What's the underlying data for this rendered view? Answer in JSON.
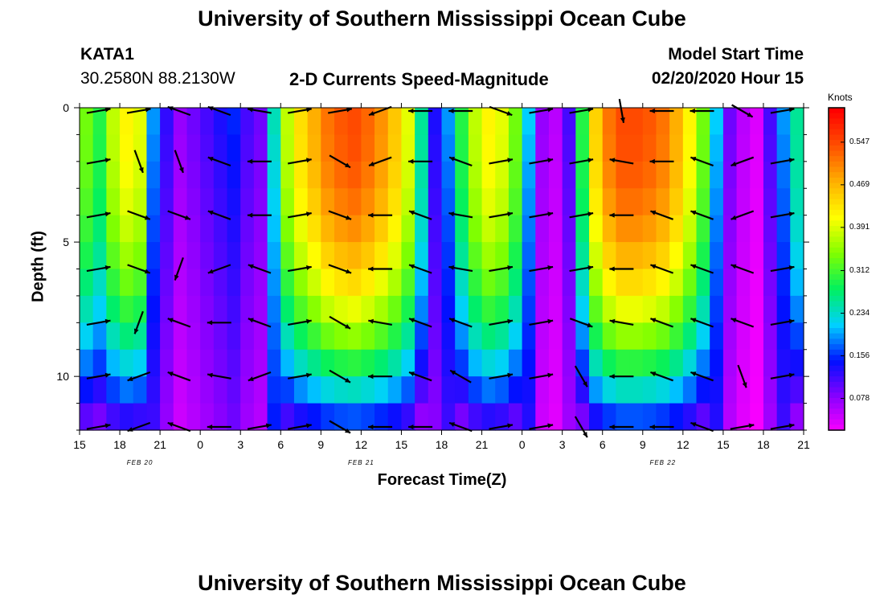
{
  "titles": {
    "top": "University of Southern Mississippi Ocean Cube",
    "bottom": "University of Southern Mississippi Ocean Cube"
  },
  "header": {
    "station_id": "KATA1",
    "station_coords": "30.2580N 88.2130W",
    "plot_title": "2-D Currents Speed-Magnitude",
    "model_start_label": "Model Start Time",
    "model_start_value": "02/20/2020 Hour 15"
  },
  "chart_data": {
    "type": "heatmap",
    "title": "2-D Currents Speed-Magnitude",
    "xlabel": "Forecast Time(Z)",
    "ylabel": "Depth (ft)",
    "x_tick_labels": [
      "15",
      "18",
      "21",
      "0",
      "3",
      "6",
      "9",
      "12",
      "15",
      "18",
      "21",
      "0",
      "3",
      "6",
      "9",
      "12",
      "15",
      "18",
      "21"
    ],
    "date_labels": [
      {
        "label": "FEB 20",
        "at_hour": 4.5
      },
      {
        "label": "FEB 21",
        "at_hour": 21
      },
      {
        "label": "FEB 22",
        "at_hour": 43.5
      }
    ],
    "xlim_hours": [
      0,
      54
    ],
    "y_tick_labels": [
      "0",
      "5",
      "10"
    ],
    "y_tick_values": [
      0,
      5,
      10
    ],
    "ylim": [
      0,
      12
    ],
    "colorbar": {
      "unit": "Knots",
      "tick_labels": [
        "0.547",
        "0.469",
        "0.391",
        "0.312",
        "0.234",
        "0.156",
        "0.078"
      ],
      "tick_values": [
        0.547,
        0.469,
        0.391,
        0.312,
        0.234,
        0.156,
        0.078
      ],
      "range": [
        0.02,
        0.61
      ],
      "colors": [
        "#ff00ff",
        "#8a00ff",
        "#0010ff",
        "#00d0ff",
        "#00f060",
        "#80ff00",
        "#ffff00",
        "#ffb000",
        "#ff5000",
        "#ff0000"
      ]
    },
    "depth_levels_ft": [
      0,
      1,
      2,
      3,
      4,
      5,
      6,
      7,
      8,
      9,
      10,
      11,
      12
    ],
    "time_hours": [
      0,
      1,
      2,
      3,
      4,
      5,
      6,
      7,
      8,
      9,
      10,
      11,
      12,
      13,
      14,
      15,
      16,
      17,
      18,
      19,
      20,
      21,
      22,
      23,
      24,
      25,
      26,
      27,
      28,
      29,
      30,
      31,
      32,
      33,
      34,
      35,
      36,
      37,
      38,
      39,
      40,
      41,
      42,
      43,
      44,
      45,
      46,
      47,
      48,
      49,
      50,
      51,
      52,
      53,
      54
    ],
    "surface_speed": [
      0.34,
      0.3,
      0.38,
      0.42,
      0.4,
      0.2,
      0.13,
      0.08,
      0.1,
      0.12,
      0.14,
      0.16,
      0.12,
      0.1,
      0.25,
      0.38,
      0.44,
      0.48,
      0.52,
      0.54,
      0.55,
      0.53,
      0.5,
      0.46,
      0.4,
      0.26,
      0.14,
      0.2,
      0.3,
      0.38,
      0.42,
      0.4,
      0.34,
      0.22,
      0.08,
      0.06,
      0.12,
      0.3,
      0.45,
      0.52,
      0.55,
      0.55,
      0.54,
      0.52,
      0.48,
      0.42,
      0.34,
      0.22,
      0.1,
      0.06,
      0.04,
      0.12,
      0.2,
      0.26,
      0.28
    ],
    "arrows_description": "current direction vectors sampled every 3 h at even depth levels",
    "arrow_angles_deg": [
      10,
      10,
      10,
      10,
      10,
      10,
      10,
      10,
      -70,
      -20,
      -20,
      -110,
      200,
      200,
      160,
      -70,
      -20,
      -110,
      160,
      160,
      160,
      160,
      160,
      160,
      200,
      180,
      170,
      180,
      170,
      180,
      180,
      160,
      160,
      200,
      10,
      10,
      10,
      10,
      10,
      10,
      10,
      10,
      10,
      -30,
      -20,
      -20,
      -30,
      -30,
      -30,
      200,
      200,
      180,
      180,
      170,
      180,
      180,
      180,
      180,
      160,
      160,
      160,
      160,
      180,
      180,
      160,
      170,
      170,
      160,
      150,
      160,
      -20,
      10,
      10,
      10,
      10,
      10,
      10,
      10,
      10,
      10,
      10,
      10,
      10,
      10,
      10,
      10,
      10,
      10,
      -20,
      -60,
      -60,
      -80,
      170,
      180,
      180,
      170,
      180,
      180,
      180,
      180,
      160,
      160,
      160,
      160,
      180,
      180,
      160,
      160,
      160,
      160,
      160,
      160,
      -30,
      200,
      200,
      160,
      160,
      -70,
      10,
      10,
      10
    ]
  }
}
